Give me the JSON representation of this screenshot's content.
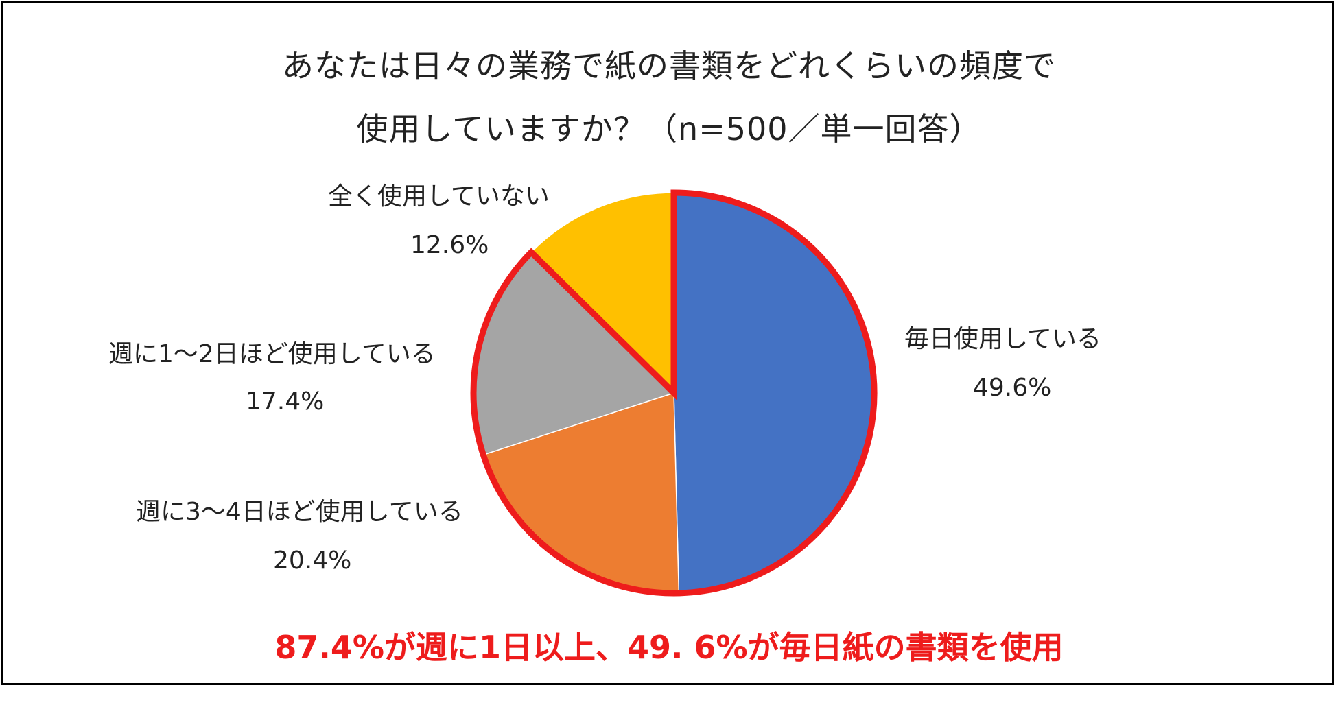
{
  "chart_data": {
    "type": "pie",
    "title_line1": "あなたは日々の業務で紙の書類をどれくらいの頻度で",
    "title_line2": "使用していますか？（n=500／単一回答）",
    "slices": [
      {
        "label": "毎日使用している",
        "value": 49.6,
        "value_label": "49.6%",
        "color": "#4472c4"
      },
      {
        "label": "週に3〜4日ほど使用している",
        "value": 20.4,
        "value_label": "20.4%",
        "color": "#ed7d31"
      },
      {
        "label": "週に1〜2日ほど使用している",
        "value": 17.4,
        "value_label": "17.4%",
        "color": "#a5a5a5"
      },
      {
        "label": "全く使用していない",
        "value": 12.6,
        "value_label": "12.6%",
        "color": "#ffc000"
      }
    ],
    "highlight_color": "#ee1c1c",
    "highlighted_slices": [
      "毎日使用している",
      "週に3〜4日ほど使用している",
      "週に1〜2日ほど使用している"
    ],
    "annotation": "87.4%が週に1日以上、49. 6%が毎日紙の書類を使用"
  }
}
